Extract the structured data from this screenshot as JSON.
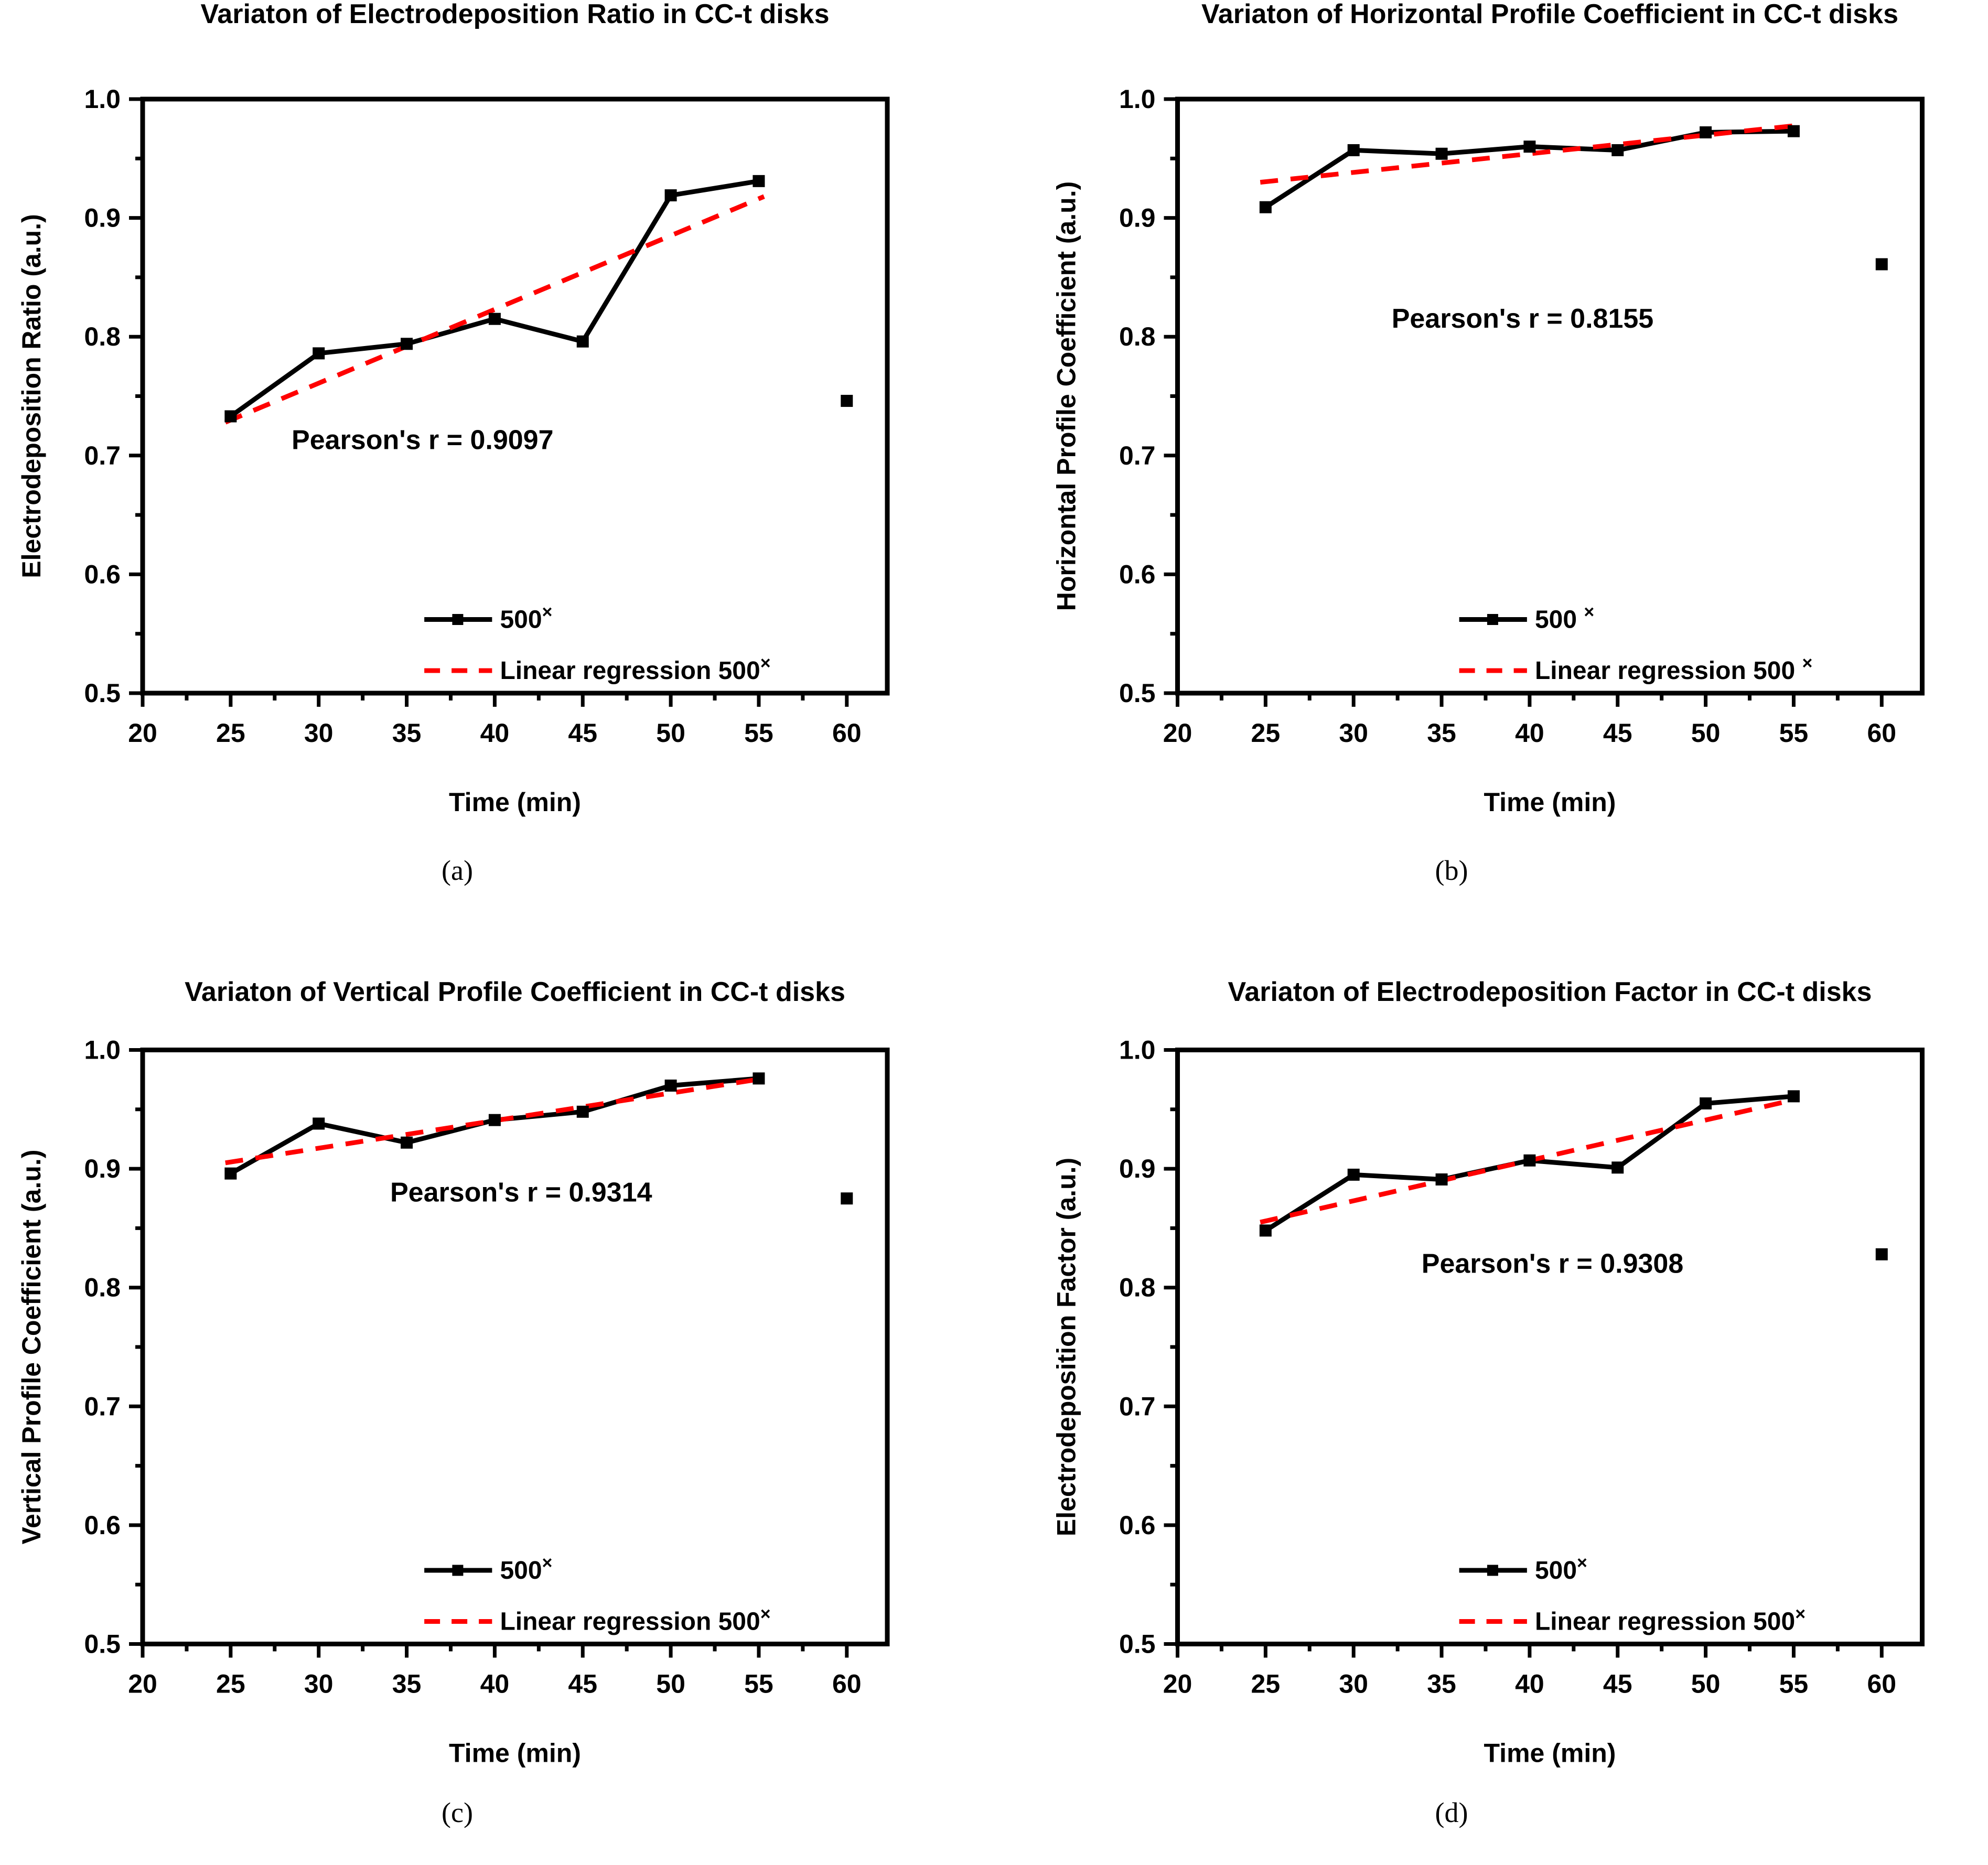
{
  "figure": {
    "background": "#ffffff",
    "series_color": "#000000",
    "regression_color": "#ff0000"
  },
  "axes": {
    "x": {
      "range": [
        20,
        62.3
      ],
      "major_ticks": [
        20,
        25,
        30,
        35,
        40,
        45,
        50,
        55,
        60
      ],
      "tick_labels": [
        "20",
        "25",
        "30",
        "35",
        "40",
        "45",
        "50",
        "55",
        "60"
      ],
      "minor_ticks": [
        22.5,
        27.5,
        32.5,
        37.5,
        42.5,
        47.5,
        52.5,
        57.5
      ]
    },
    "y": {
      "range": [
        0.5,
        1.0
      ],
      "major_ticks": [
        1.0,
        0.9,
        0.8,
        0.7,
        0.6,
        0.5
      ],
      "tick_labels": [
        "1.0",
        "0.9",
        "0.8",
        "0.7",
        "0.6",
        "0.5"
      ],
      "minor_ticks": [
        0.95,
        0.85,
        0.75,
        0.65,
        0.55
      ]
    }
  },
  "chart_data": [
    {
      "type": "line",
      "id": "a",
      "caption": "(a)",
      "title": "Variaton of Electrodeposition Ratio in CC-t disks",
      "xlabel": "Time (min)",
      "ylabel": "Electrodeposition Ratio (a.u.)",
      "annotation": "Pearson's r = 0.9097",
      "x": [
        25,
        30,
        35,
        40,
        45,
        50,
        55
      ],
      "series": [
        {
          "name": "500×",
          "values": [
            0.733,
            0.786,
            0.794,
            0.815,
            0.796,
            0.919,
            0.931
          ]
        }
      ],
      "isolated_point": {
        "x": 60,
        "y": 0.746
      },
      "regression_line": {
        "name": "Linear regression 500×",
        "x1": 24.7,
        "y1": 0.728,
        "x2": 55.3,
        "y2": 0.918
      },
      "legend": {
        "series": "500×",
        "regression": "Linear regression 500×"
      },
      "xlim": [
        20,
        62.3
      ],
      "ylim": [
        0.5,
        1.0
      ],
      "grid": false,
      "legend_position": "lower-center-right-inside"
    },
    {
      "type": "line",
      "id": "b",
      "caption": "(b)",
      "title": "Variaton of Horizontal Profile Coefficient in CC-t disks",
      "xlabel": "Time (min)",
      "ylabel": "Horizontal Profile Coefficient (a.u.)",
      "annotation": "Pearson's r = 0.8155",
      "x": [
        25,
        30,
        35,
        40,
        45,
        50,
        55
      ],
      "series": [
        {
          "name": "500 ×",
          "values": [
            0.909,
            0.957,
            0.954,
            0.96,
            0.957,
            0.972,
            0.973
          ]
        }
      ],
      "isolated_point": {
        "x": 60,
        "y": 0.861
      },
      "regression_line": {
        "name": "Linear regression 500 ×",
        "x1": 24.7,
        "y1": 0.93,
        "x2": 55.3,
        "y2": 0.978
      },
      "legend": {
        "series": "500 ×",
        "regression": "Linear regression 500 ×"
      },
      "xlim": [
        20,
        62.3
      ],
      "ylim": [
        0.5,
        1.0
      ],
      "grid": false,
      "legend_position": "lower-center-right-inside"
    },
    {
      "type": "line",
      "id": "c",
      "caption": "(c)",
      "title": "Variaton of Vertical Profile Coefficient in CC-t disks",
      "xlabel": "Time (min)",
      "ylabel": "Vertical Profile Coefficient (a.u.)",
      "annotation": "Pearson's r = 0.9314",
      "x": [
        25,
        30,
        35,
        40,
        45,
        50,
        55
      ],
      "series": [
        {
          "name": "500×",
          "values": [
            0.896,
            0.938,
            0.922,
            0.941,
            0.948,
            0.97,
            0.976
          ]
        }
      ],
      "isolated_point": {
        "x": 60,
        "y": 0.875
      },
      "regression_line": {
        "name": "Linear regression 500×",
        "x1": 24.7,
        "y1": 0.905,
        "x2": 55.3,
        "y2": 0.976
      },
      "legend": {
        "series": "500×",
        "regression": "Linear regression 500×"
      },
      "xlim": [
        20,
        62.3
      ],
      "ylim": [
        0.5,
        1.0
      ],
      "grid": false,
      "legend_position": "lower-center-right-inside"
    },
    {
      "type": "line",
      "id": "d",
      "caption": "(d)",
      "title": "Variaton of Electrodeposition Factor in CC-t disks",
      "xlabel": "Time (min)",
      "ylabel": "Electrodeposition Factor (a.u.)",
      "annotation": "Pearson's r = 0.9308",
      "x": [
        25,
        30,
        35,
        40,
        45,
        50,
        55
      ],
      "series": [
        {
          "name": "500×",
          "values": [
            0.848,
            0.895,
            0.891,
            0.907,
            0.901,
            0.955,
            0.961
          ]
        }
      ],
      "isolated_point": {
        "x": 60,
        "y": 0.828
      },
      "regression_line": {
        "name": "Linear regression 500×",
        "x1": 24.7,
        "y1": 0.855,
        "x2": 55.3,
        "y2": 0.959
      },
      "legend": {
        "series": "500×",
        "regression": "Linear regression 500×"
      },
      "xlim": [
        20,
        62.3
      ],
      "ylim": [
        0.5,
        1.0
      ],
      "grid": false,
      "legend_position": "lower-center-right-inside"
    }
  ]
}
